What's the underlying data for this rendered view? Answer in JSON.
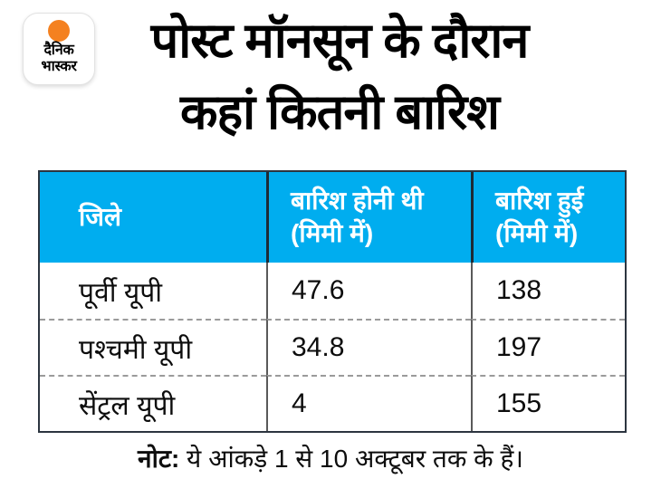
{
  "colors": {
    "header_bg": "#00ADEF",
    "logo_sun": "#F48120",
    "title_text": "#000000"
  },
  "brand": {
    "logo_line1": "दैनिक",
    "logo_line2": "भास्कर"
  },
  "title": {
    "line1": "पोस्ट मॉनसून के दौरान",
    "line2": "कहां कितनी बारिश"
  },
  "table": {
    "header": [
      {
        "line1": "जिले",
        "line2": ""
      },
      {
        "line1": "बारिश होनी थी",
        "line2": "(मिमी में)"
      },
      {
        "line1": "बारिश हुई",
        "line2": "(मिमी में)"
      }
    ],
    "rows": [
      [
        "पूर्वी यूपी",
        "47.6",
        "138"
      ],
      [
        "पश्चमी यूपी",
        "34.8",
        "197"
      ],
      [
        "सेंट्रल यूपी",
        "4",
        "155"
      ]
    ]
  },
  "note": {
    "label": "नोट:",
    "text": " ये आंकड़े 1 से 10 अक्टूबर तक के हैं।"
  },
  "chart_data": {
    "type": "table",
    "title": "पोस्ट मॉनसून के दौरान कहां कितनी बारिश",
    "columns": [
      "जिले",
      "बारिश होनी थी (मिमी में)",
      "बारिश हुई (मिमी में)"
    ],
    "rows": [
      {
        "district": "पूर्वी यूपी",
        "expected_mm": 47.6,
        "actual_mm": 138
      },
      {
        "district": "पश्चमी यूपी",
        "expected_mm": 34.8,
        "actual_mm": 197
      },
      {
        "district": "सेंट्रल यूपी",
        "expected_mm": 4,
        "actual_mm": 155
      }
    ],
    "note": "नोट: ये आंकड़े 1 से 10 अक्टूबर तक के हैं।",
    "header_bg": "#00ADEF"
  }
}
